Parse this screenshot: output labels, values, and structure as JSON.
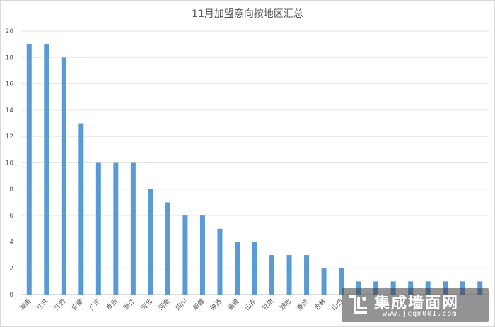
{
  "chart_data": {
    "type": "bar",
    "title": "11月加盟意向按地区汇总",
    "ylim": [
      0,
      20
    ],
    "yticks": [
      0,
      2,
      4,
      6,
      8,
      10,
      12,
      14,
      16,
      18,
      20
    ],
    "grid": true,
    "bar_color": "#5b9bd5",
    "categories": [
      "湖南",
      "江苏",
      "江西",
      "安徽",
      "广东",
      "贵州",
      "浙江",
      "河北",
      "河南",
      "四川",
      "新疆",
      "陕西",
      "福建",
      "山东",
      "甘肃",
      "湖北",
      "重庆",
      "吉林",
      "山西",
      "",
      "",
      "",
      "",
      "",
      "",
      "",
      ""
    ],
    "values": [
      19,
      19,
      18,
      13,
      10,
      10,
      10,
      8,
      7,
      6,
      6,
      5,
      4,
      4,
      3,
      3,
      3,
      2,
      2,
      1,
      1,
      1,
      1,
      1,
      1,
      1,
      1
    ]
  },
  "watermark": {
    "name": "集成墙面网",
    "url": "www.jcqm001.com"
  }
}
